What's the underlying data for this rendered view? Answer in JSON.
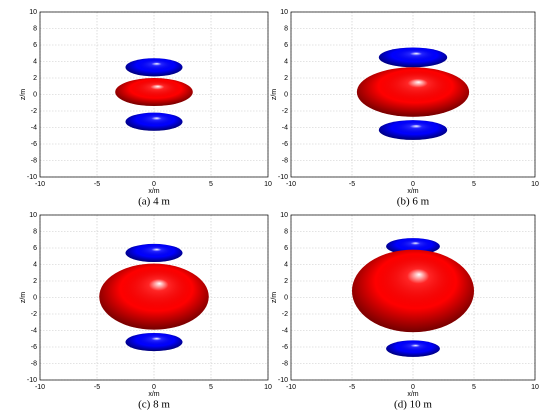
{
  "chart_data": [
    {
      "type": "ellipse",
      "title": "(a) 4 m",
      "x_label": "x/m",
      "y_label": "z/m",
      "xlim": [
        -10,
        10
      ],
      "ylim": [
        -10,
        10
      ],
      "xticks": [
        -10,
        -5,
        0,
        5,
        10
      ],
      "yticks": [
        -10,
        -8,
        -6,
        -4,
        -2,
        0,
        2,
        4,
        6,
        8,
        10
      ],
      "grid": true,
      "shapes": [
        {
          "color": "#0000ff",
          "cx": 0,
          "cz": 3.3,
          "rx": 2.5,
          "rz": 1.1
        },
        {
          "color": "#ff0000",
          "cx": 0,
          "cz": 0.3,
          "rx": 3.4,
          "rz": 1.7
        },
        {
          "color": "#0000ff",
          "cx": 0,
          "cz": -3.3,
          "rx": 2.5,
          "rz": 1.1
        }
      ]
    },
    {
      "type": "ellipse",
      "title": "(b) 6 m",
      "x_label": "x/m",
      "y_label": "z/m",
      "xlim": [
        -10,
        10
      ],
      "ylim": [
        -10,
        10
      ],
      "xticks": [
        -10,
        -5,
        0,
        5,
        10
      ],
      "yticks": [
        -10,
        -8,
        -6,
        -4,
        -2,
        0,
        2,
        4,
        6,
        8,
        10
      ],
      "grid": true,
      "shapes": [
        {
          "color": "#0000ff",
          "cx": 0,
          "cz": 4.5,
          "rx": 2.8,
          "rz": 1.2
        },
        {
          "color": "#ff0000",
          "cx": 0,
          "cz": 0.3,
          "rx": 4.6,
          "rz": 3.0
        },
        {
          "color": "#0000ff",
          "cx": 0,
          "cz": -4.3,
          "rx": 2.8,
          "rz": 1.2
        }
      ]
    },
    {
      "type": "ellipse",
      "title": "(c) 8 m",
      "x_label": "x/m",
      "y_label": "z/m",
      "xlim": [
        -10,
        10
      ],
      "ylim": [
        -10,
        10
      ],
      "xticks": [
        -10,
        -5,
        0,
        5,
        10
      ],
      "yticks": [
        -10,
        -8,
        -6,
        -4,
        -2,
        0,
        2,
        4,
        6,
        8,
        10
      ],
      "grid": true,
      "shapes": [
        {
          "color": "#0000ff",
          "cx": 0,
          "cz": 5.4,
          "rx": 2.5,
          "rz": 1.1
        },
        {
          "color": "#ff0000",
          "cx": 0,
          "cz": 0.1,
          "rx": 4.8,
          "rz": 4.0
        },
        {
          "color": "#0000ff",
          "cx": 0,
          "cz": -5.4,
          "rx": 2.5,
          "rz": 1.1
        }
      ]
    },
    {
      "type": "ellipse",
      "title": "(d) 10 m",
      "x_label": "x/m",
      "y_label": "z/m",
      "xlim": [
        -10,
        10
      ],
      "ylim": [
        -10,
        10
      ],
      "xticks": [
        -10,
        -5,
        0,
        5,
        10
      ],
      "yticks": [
        -10,
        -8,
        -6,
        -4,
        -2,
        0,
        2,
        4,
        6,
        8,
        10
      ],
      "grid": true,
      "shapes": [
        {
          "color": "#0000ff",
          "cx": 0,
          "cz": 6.2,
          "rx": 2.2,
          "rz": 1.0
        },
        {
          "color": "#ff0000",
          "cx": 0,
          "cz": 0.8,
          "rx": 5.0,
          "rz": 5.0
        },
        {
          "color": "#0000ff",
          "cx": 0,
          "cz": -6.2,
          "rx": 2.2,
          "rz": 1.0
        }
      ]
    }
  ]
}
